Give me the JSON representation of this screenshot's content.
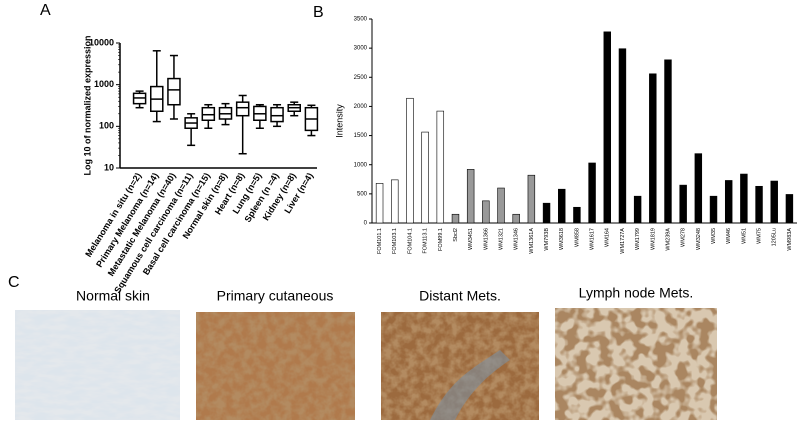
{
  "panel_labels": [
    "A",
    "B",
    "C"
  ],
  "chart_data": [
    {
      "type": "box",
      "y_label": "Log 10 of normalized expression",
      "log": true,
      "categories": [
        "Melanoma in situ (n=2)",
        "Primary Melanoma (n=14)",
        "Metastatic Melanoma (n=40)",
        "Squamous cell carcinoma (n=11)",
        "Basal cell carcinoma (n=15)",
        "Normal skin (n=8)",
        "Heart (n=8)",
        "Lung (n=5)",
        "Spleen (n =4)",
        "Kidney (n=8)",
        "Liver (n=4)"
      ],
      "min": [
        280,
        130,
        150,
        35,
        90,
        110,
        22,
        90,
        100,
        180,
        60
      ],
      "q1": [
        350,
        230,
        330,
        90,
        140,
        150,
        180,
        140,
        130,
        230,
        80
      ],
      "median": [
        480,
        450,
        750,
        120,
        190,
        200,
        280,
        200,
        180,
        280,
        150
      ],
      "q3": [
        620,
        900,
        1400,
        160,
        280,
        280,
        380,
        300,
        280,
        330,
        280
      ],
      "max": [
        700,
        6500,
        5000,
        200,
        330,
        350,
        550,
        330,
        330,
        380,
        320
      ],
      "ylim": [
        10,
        10000
      ],
      "yticks": [
        10,
        100,
        1000,
        10000
      ]
    },
    {
      "type": "bar",
      "y_label": "Intensity",
      "categories": [
        "FOM101.1",
        "FOM103.1",
        "FOM104.1",
        "FOM113.1",
        "FOM99.1",
        "Sbcl2",
        "WM3451",
        "WM1366",
        "WM1321",
        "WM1346",
        "WM1361A",
        "WM793B",
        "WM3618",
        "WM858",
        "WM1617",
        "WM164",
        "WM1727A",
        "WM1799",
        "WM1819",
        "WM239A",
        "WM278",
        "WM3248",
        "WM35",
        "WM46",
        "WM51",
        "WM75",
        "1205Lu",
        "WM983A"
      ],
      "values": [
        680,
        740,
        2140,
        1560,
        1920,
        150,
        920,
        380,
        600,
        150,
        820,
        340,
        580,
        270,
        1030,
        3280,
        2990,
        460,
        2560,
        2800,
        650,
        1190,
        460,
        730,
        840,
        630,
        720,
        490
      ],
      "colors": [
        "#ffffff",
        "#ffffff",
        "#ffffff",
        "#ffffff",
        "#ffffff",
        "#999999",
        "#999999",
        "#999999",
        "#999999",
        "#999999",
        "#999999",
        "#000000",
        "#000000",
        "#000000",
        "#000000",
        "#000000",
        "#000000",
        "#000000",
        "#000000",
        "#000000",
        "#000000",
        "#000000",
        "#000000",
        "#000000",
        "#000000",
        "#000000",
        "#000000",
        "#000000"
      ],
      "ylim": [
        0,
        3500
      ],
      "yticks": [
        0,
        500,
        1000,
        1500,
        2000,
        2500,
        3000,
        3500
      ]
    }
  ],
  "images": [
    {
      "caption": "Normal skin"
    },
    {
      "caption": "Primary cutaneous"
    },
    {
      "caption": "Distant Mets."
    },
    {
      "caption": "Lymph node Mets."
    }
  ]
}
